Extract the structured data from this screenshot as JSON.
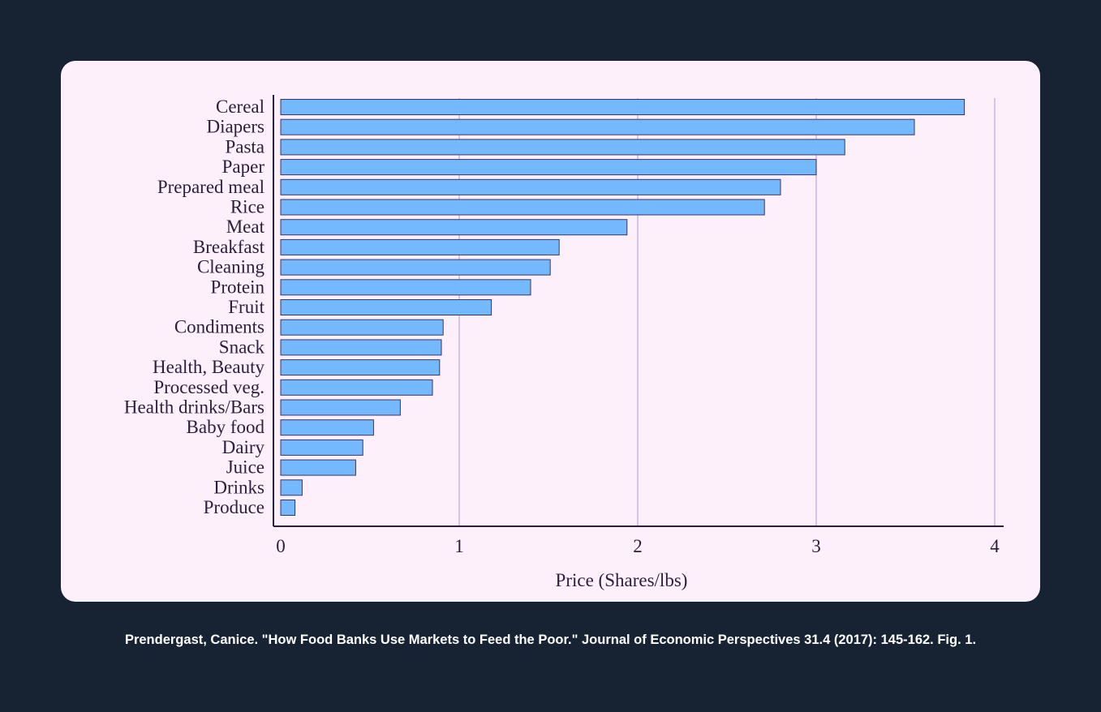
{
  "caption": "Prendergast, Canice. \"How Food Banks Use Markets to Feed the Poor.\" Journal of Economic Perspectives 31.4 (2017): 145-162. Fig. 1.",
  "colors": {
    "background": "#172333",
    "card": "#fdf0fb",
    "bar_fill": "#74b9fd",
    "bar_stroke": "#3b3566",
    "grid": "#cdb6e3",
    "axis": "#2a1f3d"
  },
  "chart_data": {
    "type": "bar",
    "orientation": "horizontal",
    "categories": [
      "Cereal",
      "Diapers",
      "Pasta",
      "Paper",
      "Prepared meal",
      "Rice",
      "Meat",
      "Breakfast",
      "Cleaning",
      "Protein",
      "Fruit",
      "Condiments",
      "Snack",
      "Health, Beauty",
      "Processed veg.",
      "Health drinks/Bars",
      "Baby food",
      "Dairy",
      "Juice",
      "Drinks",
      "Produce"
    ],
    "values": [
      3.83,
      3.55,
      3.16,
      3.0,
      2.8,
      2.71,
      1.94,
      1.56,
      1.51,
      1.4,
      1.18,
      0.91,
      0.9,
      0.89,
      0.85,
      0.67,
      0.52,
      0.46,
      0.42,
      0.12,
      0.08
    ],
    "xlabel": "Price (Shares/lbs)",
    "xlim": [
      0,
      4
    ],
    "xticks": [
      0,
      1,
      2,
      3,
      4
    ],
    "grid": "vertical"
  }
}
